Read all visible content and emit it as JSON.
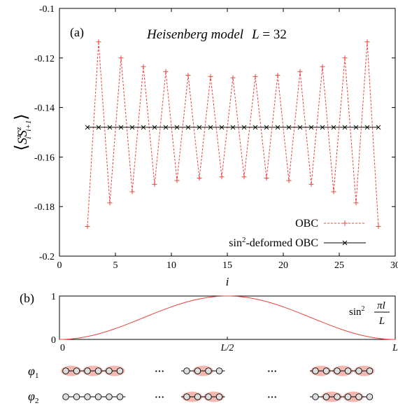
{
  "chart_data": [
    {
      "panel_label": "(a)",
      "type": "line",
      "title": "Heisenberg model  L = 32",
      "title_parts": {
        "model": "Heisenberg model",
        "var": "L",
        "eq": " = 32"
      },
      "xlabel": "i",
      "ylabel": {
        "left": "⟨",
        "s1": "S",
        "s1_sup": "z",
        "s1_sub": "i",
        "s2": "S",
        "s2_sup": "z",
        "s2_sub": "i+1",
        "right": "⟩"
      },
      "xlim": [
        0,
        30
      ],
      "ylim": [
        -0.2,
        -0.1
      ],
      "xticks": [
        "0",
        "5",
        "10",
        "15",
        "20",
        "25",
        "30"
      ],
      "yticks": [
        "-0.1",
        "-0.12",
        "-0.14",
        "-0.16",
        "-0.18",
        "-0.2"
      ],
      "grid": false,
      "legend_position": "bottom-right",
      "series": [
        {
          "name": "OBC",
          "color": "#e8443a",
          "marker": "plus",
          "line": "dashed",
          "x": [
            2.5,
            3.5,
            4.5,
            5.5,
            6.5,
            7.5,
            8.5,
            9.5,
            10.5,
            11.5,
            12.5,
            13.5,
            14.5,
            15.5,
            16.5,
            17.5,
            18.5,
            19.5,
            20.5,
            21.5,
            22.5,
            23.5,
            24.5,
            25.5,
            26.5,
            27.5,
            28.5
          ],
          "y": [
            -0.188,
            -0.1135,
            -0.1785,
            -0.12,
            -0.174,
            -0.1235,
            -0.171,
            -0.1255,
            -0.1695,
            -0.127,
            -0.1685,
            -0.1275,
            -0.168,
            -0.128,
            -0.168,
            -0.1275,
            -0.1685,
            -0.127,
            -0.1695,
            -0.1255,
            -0.171,
            -0.1235,
            -0.174,
            -0.12,
            -0.1785,
            -0.1135,
            -0.188
          ]
        },
        {
          "name_prefix": "sin",
          "name_sup": "2",
          "name_suffix": "-deformed OBC",
          "color": "#000000",
          "marker": "x",
          "line": "solid",
          "x": [
            2.5,
            3.5,
            4.5,
            5.5,
            6.5,
            7.5,
            8.5,
            9.5,
            10.5,
            11.5,
            12.5,
            13.5,
            14.5,
            15.5,
            16.5,
            17.5,
            18.5,
            19.5,
            20.5,
            21.5,
            22.5,
            23.5,
            24.5,
            25.5,
            26.5,
            27.5,
            28.5
          ],
          "y": [
            -0.148,
            -0.148,
            -0.148,
            -0.148,
            -0.148,
            -0.148,
            -0.148,
            -0.148,
            -0.148,
            -0.148,
            -0.148,
            -0.148,
            -0.148,
            -0.148,
            -0.148,
            -0.148,
            -0.148,
            -0.148,
            -0.148,
            -0.148,
            -0.148,
            -0.148,
            -0.148,
            -0.148,
            -0.148,
            -0.148,
            -0.148
          ]
        }
      ]
    },
    {
      "panel_label": "(b)",
      "type": "line",
      "function": "sin^2(pi l / L)",
      "xlim": [
        0,
        1
      ],
      "ylim": [
        0,
        1
      ],
      "xticks": [
        "0",
        "L/2",
        "L"
      ],
      "yticks": [
        "0",
        "1"
      ],
      "formula": {
        "sin": "sin",
        "sup": "2",
        "num": "πl",
        "den": "L"
      },
      "curve_color": "#e8443a",
      "samples": 101
    }
  ],
  "schematic": {
    "rows": [
      {
        "label": "φ",
        "sub": "1",
        "dots": "···"
      },
      {
        "label": "φ",
        "sub": "2",
        "dots": "···"
      }
    ],
    "bond_color": "#f4b8b0",
    "site_fill": "#dedede"
  }
}
